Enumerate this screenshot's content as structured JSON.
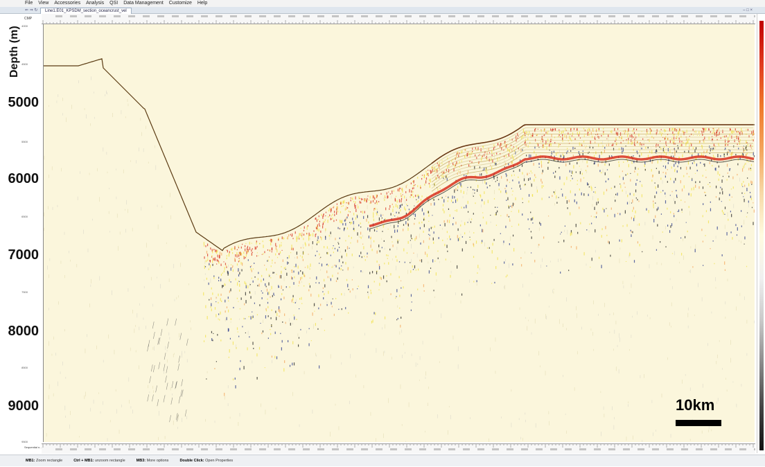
{
  "menu": {
    "items": [
      "File",
      "View",
      "Accessories",
      "Analysis",
      "QSI",
      "Data Management",
      "Customize",
      "Help"
    ]
  },
  "tab": {
    "title": "Line1.E01_KPSDM_section_oceancrust_vel",
    "tools": "⇐ ⇒ ↻",
    "window_controls": "– □ ×"
  },
  "axis": {
    "top_label": "CMP",
    "bottom_label": "Sequential n...",
    "ytitle": "Depth (m)",
    "ticks_major": [
      "5000",
      "6000",
      "7000",
      "8000",
      "9000"
    ],
    "ticks_minor": [
      "4000",
      "4500",
      "5500",
      "6500",
      "7500",
      "8500",
      "9500"
    ]
  },
  "scale": {
    "label": "10km"
  },
  "status": {
    "mb1_key": "MB1:",
    "mb1_text": "Zoom rectangle",
    "ctrl_key": "Ctrl + MB1:",
    "ctrl_text": "unzoom rectangle",
    "mb3_key": "MB3:",
    "mb3_text": "More options",
    "dbl_key": "Double Click:",
    "dbl_text": "Open Properties"
  },
  "colors": {
    "background": "#fbf6dc",
    "strong": "#d7301f",
    "mid": "#f4a55c",
    "yellow": "#f2e24a",
    "blue": "#2a3a8c"
  }
}
